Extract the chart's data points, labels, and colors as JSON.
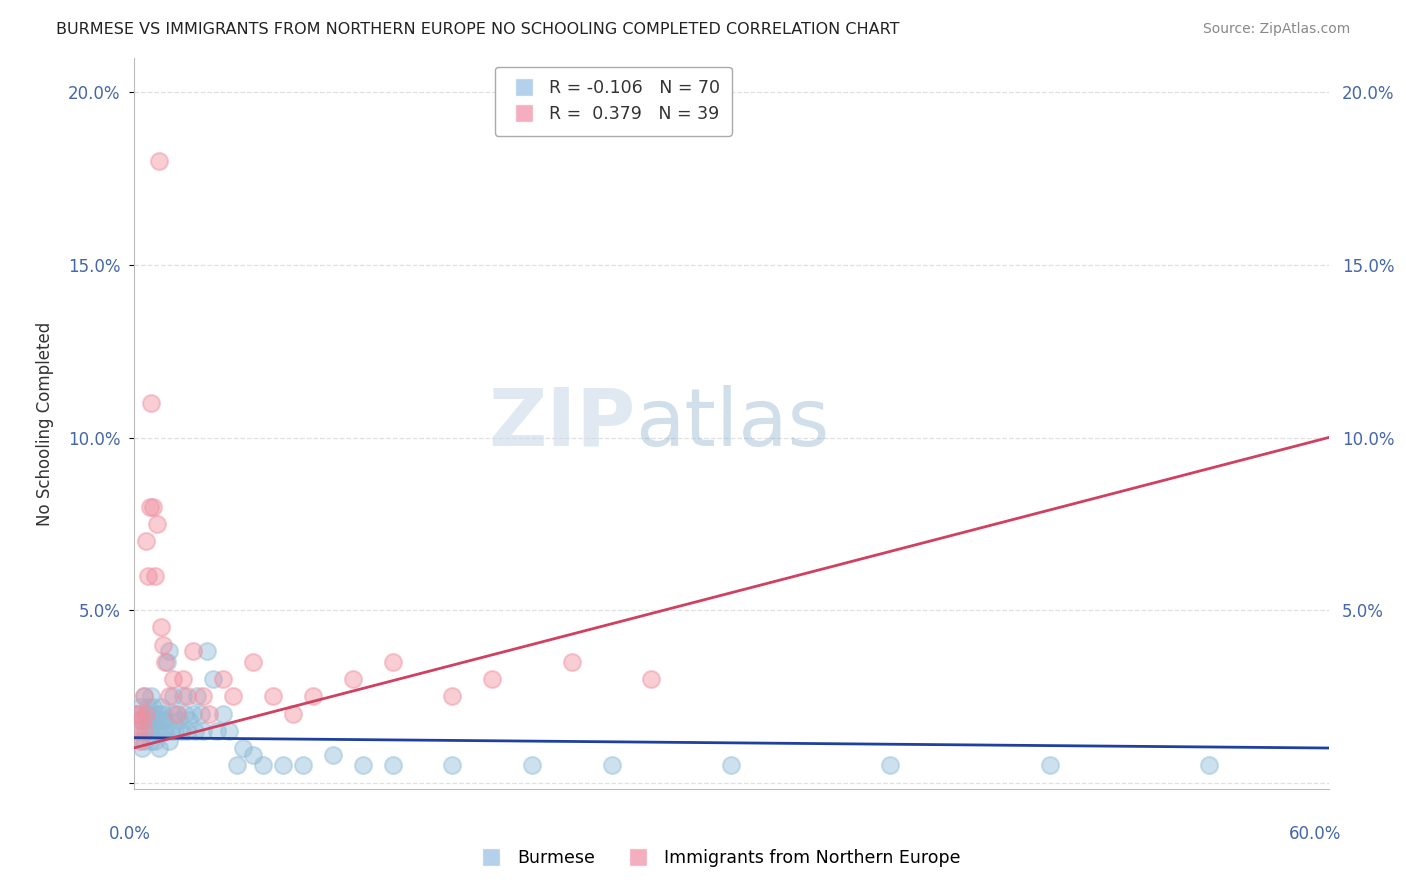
{
  "title": "BURMESE VS IMMIGRANTS FROM NORTHERN EUROPE NO SCHOOLING COMPLETED CORRELATION CHART",
  "source": "Source: ZipAtlas.com",
  "ylabel": "No Schooling Completed",
  "xlim": [
    0.0,
    0.6
  ],
  "ylim": [
    -0.002,
    0.21
  ],
  "yticks": [
    0.0,
    0.05,
    0.1,
    0.15,
    0.2
  ],
  "legend_entries": [
    {
      "label": "Burmese",
      "color": "#a8c8e8",
      "R": -0.106,
      "N": 70
    },
    {
      "label": "Immigrants from Northern Europe",
      "color": "#f4a0b4",
      "R": 0.379,
      "N": 39
    }
  ],
  "burmese_scatter_color": "#90bcd8",
  "northern_scatter_color": "#f090a0",
  "burmese_line_color": "#2040a0",
  "northern_europe_line_color": "#d04060",
  "grid_color": "#dddddd",
  "watermark_color": "#c8d8e8",
  "burmese_x": [
    0.001,
    0.002,
    0.003,
    0.003,
    0.004,
    0.005,
    0.005,
    0.006,
    0.006,
    0.007,
    0.007,
    0.008,
    0.008,
    0.009,
    0.009,
    0.01,
    0.01,
    0.01,
    0.011,
    0.011,
    0.012,
    0.012,
    0.013,
    0.013,
    0.014,
    0.014,
    0.015,
    0.015,
    0.016,
    0.016,
    0.017,
    0.018,
    0.018,
    0.019,
    0.02,
    0.02,
    0.021,
    0.022,
    0.023,
    0.024,
    0.025,
    0.026,
    0.027,
    0.028,
    0.03,
    0.031,
    0.032,
    0.034,
    0.035,
    0.037,
    0.04,
    0.042,
    0.045,
    0.048,
    0.052,
    0.055,
    0.06,
    0.065,
    0.075,
    0.085,
    0.1,
    0.115,
    0.13,
    0.16,
    0.2,
    0.24,
    0.3,
    0.38,
    0.46,
    0.54
  ],
  "burmese_y": [
    0.02,
    0.015,
    0.018,
    0.022,
    0.01,
    0.025,
    0.012,
    0.02,
    0.015,
    0.018,
    0.022,
    0.015,
    0.02,
    0.012,
    0.025,
    0.018,
    0.022,
    0.015,
    0.02,
    0.012,
    0.015,
    0.018,
    0.02,
    0.01,
    0.018,
    0.022,
    0.015,
    0.02,
    0.015,
    0.018,
    0.035,
    0.038,
    0.012,
    0.015,
    0.02,
    0.025,
    0.015,
    0.02,
    0.018,
    0.015,
    0.025,
    0.02,
    0.015,
    0.018,
    0.02,
    0.015,
    0.025,
    0.02,
    0.015,
    0.038,
    0.03,
    0.015,
    0.02,
    0.015,
    0.005,
    0.01,
    0.008,
    0.005,
    0.005,
    0.005,
    0.008,
    0.005,
    0.005,
    0.005,
    0.005,
    0.005,
    0.005,
    0.005,
    0.005,
    0.005
  ],
  "northern_x": [
    0.001,
    0.002,
    0.003,
    0.003,
    0.004,
    0.005,
    0.005,
    0.006,
    0.006,
    0.007,
    0.008,
    0.009,
    0.01,
    0.011,
    0.012,
    0.013,
    0.014,
    0.015,
    0.016,
    0.018,
    0.02,
    0.022,
    0.025,
    0.027,
    0.03,
    0.035,
    0.038,
    0.045,
    0.05,
    0.06,
    0.07,
    0.08,
    0.09,
    0.11,
    0.13,
    0.16,
    0.18,
    0.22,
    0.26
  ],
  "northern_y": [
    0.02,
    0.015,
    0.02,
    0.012,
    0.018,
    0.025,
    0.015,
    0.02,
    0.07,
    0.06,
    0.08,
    0.11,
    0.08,
    0.06,
    0.075,
    0.18,
    0.045,
    0.04,
    0.035,
    0.025,
    0.03,
    0.02,
    0.03,
    0.025,
    0.038,
    0.025,
    0.02,
    0.03,
    0.025,
    0.035,
    0.025,
    0.02,
    0.025,
    0.03,
    0.035,
    0.025,
    0.03,
    0.035,
    0.03
  ]
}
